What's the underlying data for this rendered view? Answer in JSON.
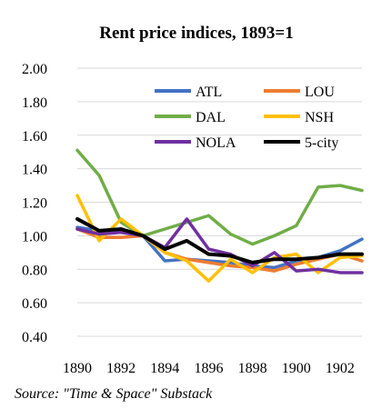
{
  "chart_data": {
    "type": "line",
    "title": "Rent price indices, 1893=1",
    "source": "Source: \"Time & Space\" Substack",
    "x": [
      1890,
      1891,
      1892,
      1893,
      1894,
      1895,
      1896,
      1897,
      1898,
      1899,
      1900,
      1901,
      1902,
      1903
    ],
    "x_tick_labels": [
      "1890",
      "1892",
      "1894",
      "1896",
      "1898",
      "1900",
      "1902"
    ],
    "y_tick_labels": [
      "0.40",
      "0.60",
      "0.80",
      "1.00",
      "1.20",
      "1.40",
      "1.60",
      "1.80",
      "2.00"
    ],
    "xlim": [
      1890,
      1903
    ],
    "ylim": [
      0.4,
      2.0
    ],
    "grid": "horizontal",
    "legend_position": "top-right",
    "series": [
      {
        "name": "ATL",
        "color": "#4472C4",
        "values": [
          1.05,
          1.03,
          1.02,
          1.0,
          0.85,
          0.86,
          0.85,
          0.84,
          0.82,
          0.81,
          0.85,
          0.87,
          0.91,
          0.98
        ]
      },
      {
        "name": "LOU",
        "color": "#ED7D31",
        "values": [
          1.04,
          0.99,
          0.99,
          1.0,
          0.9,
          0.86,
          0.84,
          0.82,
          0.81,
          0.79,
          0.83,
          0.86,
          0.89,
          0.85
        ]
      },
      {
        "name": "DAL",
        "color": "#70AD47",
        "values": [
          1.51,
          1.36,
          1.08,
          1.0,
          1.04,
          1.08,
          1.12,
          1.01,
          0.95,
          1.0,
          1.06,
          1.29,
          1.3,
          1.27
        ]
      },
      {
        "name": "NSH",
        "color": "#FFC000",
        "values": [
          1.24,
          0.97,
          1.1,
          1.0,
          0.9,
          0.85,
          0.73,
          0.86,
          0.78,
          0.87,
          0.89,
          0.78,
          0.87,
          0.88
        ]
      },
      {
        "name": "NOLA",
        "color": "#7030A0",
        "values": [
          1.04,
          1.01,
          1.02,
          1.0,
          0.93,
          1.1,
          0.92,
          0.89,
          0.82,
          0.9,
          0.79,
          0.8,
          0.78,
          0.78
        ]
      },
      {
        "name": "5-city",
        "color": "#000000",
        "values": [
          1.1,
          1.03,
          1.04,
          1.0,
          0.92,
          0.97,
          0.89,
          0.88,
          0.84,
          0.86,
          0.86,
          0.87,
          0.89,
          0.89
        ]
      }
    ]
  }
}
